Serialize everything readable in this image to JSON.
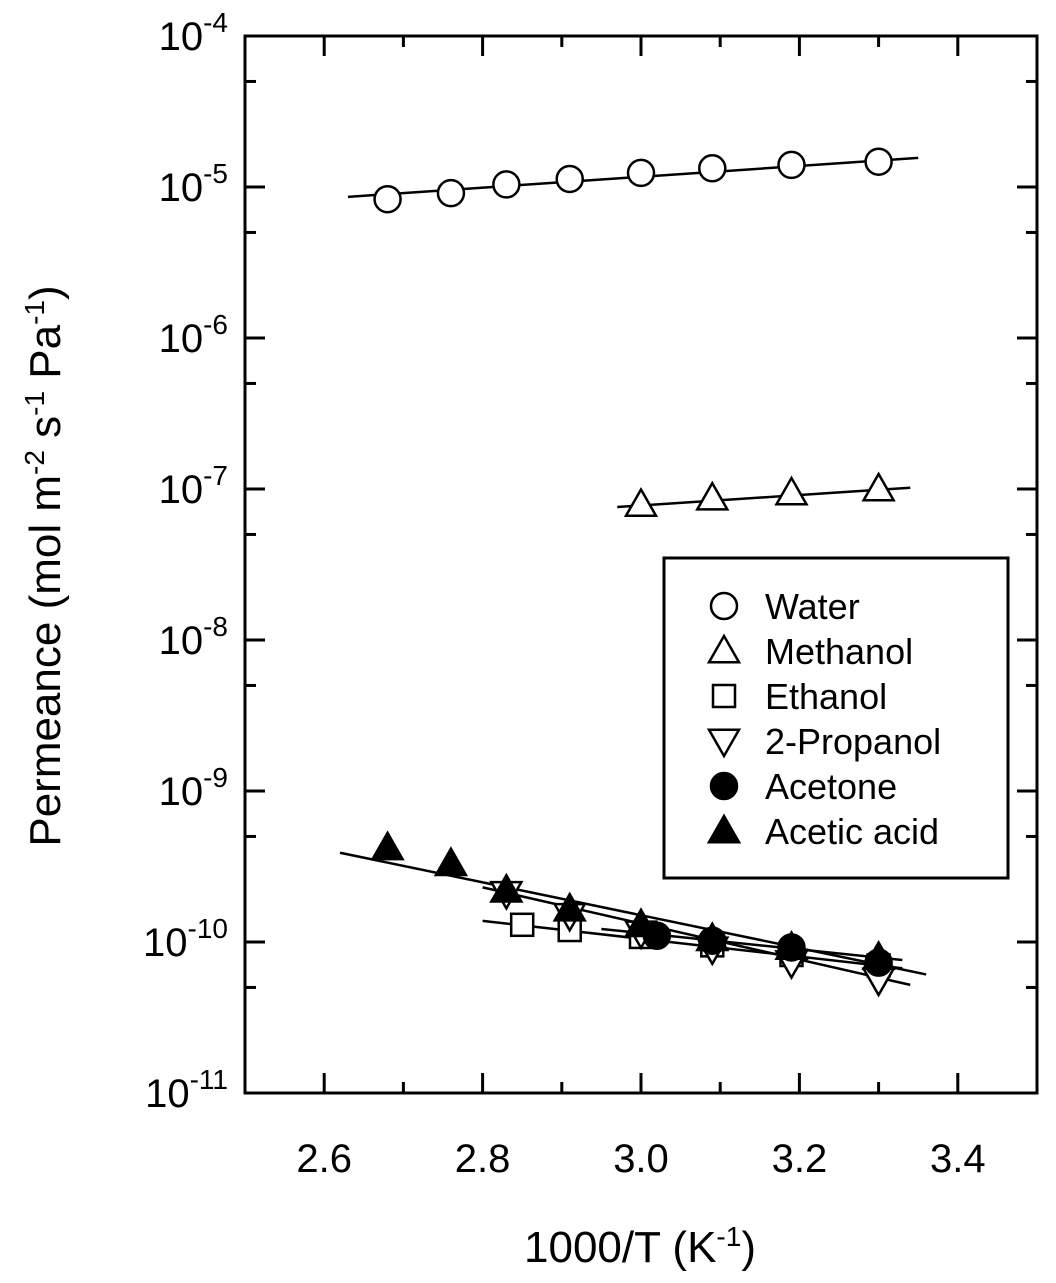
{
  "chart_data": {
    "type": "scatter",
    "xlabel": "1000/T (K-1)",
    "xlabel_parts": {
      "main": "1000/T (K",
      "sup": "-1",
      "tail": ")"
    },
    "ylabel": "Permeance (mol m-2 s-1 Pa-1)",
    "ylabel_parts": [
      "Permeance (mol m",
      "-2",
      " s",
      "-1",
      " Pa",
      "-1",
      ")"
    ],
    "xlim": [
      2.5,
      3.5
    ],
    "ylim_log10": [
      -11,
      -4
    ],
    "yscale": "log",
    "x_ticks": [
      "2.6",
      "2.8",
      "3.0",
      "3.2",
      "3.4"
    ],
    "y_ticks": [
      {
        "base": "10",
        "exp": "-4"
      },
      {
        "base": "10",
        "exp": "-5"
      },
      {
        "base": "10",
        "exp": "-6"
      },
      {
        "base": "10",
        "exp": "-7"
      },
      {
        "base": "10",
        "exp": "-8"
      },
      {
        "base": "10",
        "exp": "-9"
      },
      {
        "base": "10",
        "exp": "-10"
      },
      {
        "base": "10",
        "exp": "-11"
      }
    ],
    "legend_position": "right-middle",
    "series": [
      {
        "name": "Water",
        "marker": "circle-open",
        "x": [
          2.68,
          2.76,
          2.83,
          2.91,
          3.0,
          3.09,
          3.19,
          3.3
        ],
        "y": [
          8.3e-06,
          9.1e-06,
          1.04e-05,
          1.13e-05,
          1.24e-05,
          1.33e-05,
          1.4e-05,
          1.47e-05
        ],
        "fit": {
          "x": [
            2.63,
            3.35
          ],
          "y": [
            8.6e-06,
            1.56e-05
          ]
        }
      },
      {
        "name": "Methanol",
        "marker": "triangle-up-open",
        "x": [
          3.0,
          3.09,
          3.19,
          3.3
        ],
        "y": [
          7.9e-08,
          8.7e-08,
          9.4e-08,
          1e-07
        ],
        "fit": {
          "x": [
            2.97,
            3.34
          ],
          "y": [
            7.6e-08,
            1.02e-07
          ]
        }
      },
      {
        "name": "Ethanol",
        "marker": "square-open",
        "x": [
          2.85,
          2.91,
          3.0,
          3.09,
          3.19,
          3.3
        ],
        "y": [
          1.3e-10,
          1.2e-10,
          1.08e-10,
          9.5e-11,
          8.2e-11,
          7e-11
        ],
        "fit": {
          "x": [
            2.8,
            3.33
          ],
          "y": [
            1.38e-10,
            6.7e-11
          ]
        }
      },
      {
        "name": "2-Propanol",
        "marker": "triangle-down-open",
        "x": [
          2.83,
          2.91,
          3.0,
          3.09,
          3.19,
          3.3
        ],
        "y": [
          2.1e-10,
          1.5e-10,
          1.15e-10,
          9e-11,
          7.3e-11,
          5.6e-11
        ],
        "fit": {
          "x": [
            2.8,
            3.34
          ],
          "y": [
            2.3e-10,
            5.2e-11
          ]
        }
      },
      {
        "name": "Acetone",
        "marker": "circle-filled",
        "x": [
          3.02,
          3.09,
          3.19,
          3.3
        ],
        "y": [
          1.1e-10,
          1.02e-10,
          9.2e-11,
          7.3e-11
        ],
        "fit": {
          "x": [
            2.95,
            3.33
          ],
          "y": [
            1.22e-10,
            7.6e-11
          ]
        }
      },
      {
        "name": "Acetic acid",
        "marker": "triangle-up-filled",
        "x": [
          2.68,
          2.76,
          2.83,
          2.91,
          3.0,
          3.09,
          3.19,
          3.3
        ],
        "y": [
          4.2e-10,
          3.3e-10,
          2.2e-10,
          1.65e-10,
          1.3e-10,
          1.05e-10,
          9.2e-11,
          7.9e-11
        ],
        "fit": {
          "x": [
            2.62,
            3.36
          ],
          "y": [
            3.9e-10,
            6.1e-11
          ]
        }
      }
    ]
  }
}
